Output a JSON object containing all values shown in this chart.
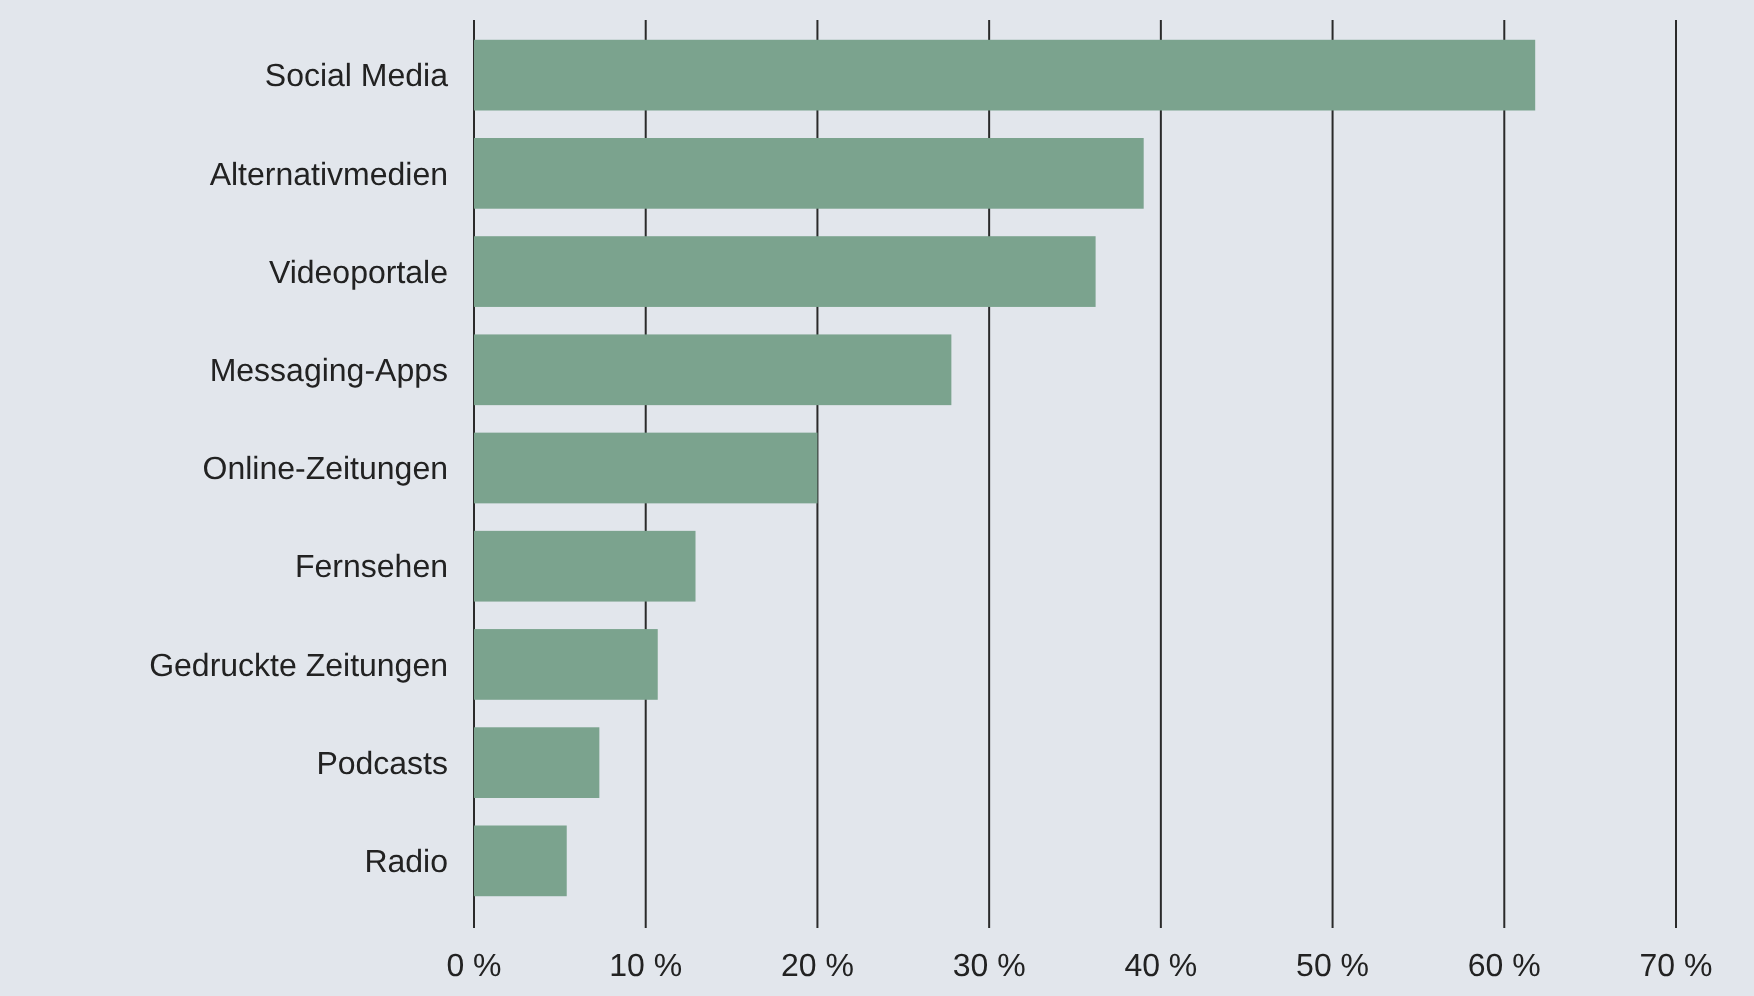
{
  "chart_data": {
    "type": "bar",
    "orientation": "horizontal",
    "categories": [
      "Social Media",
      "Alternativmedien",
      "Videoportale",
      "Messaging-Apps",
      "Online-Zeitungen",
      "Fernsehen",
      "Gedruckte Zeitungen",
      "Podcasts",
      "Radio"
    ],
    "values": [
      61.8,
      39,
      36.2,
      27.8,
      20,
      12.9,
      10.7,
      7.3,
      5.4
    ],
    "color": "#7ba38e",
    "xlim": [
      0,
      70
    ],
    "xticks": [
      {
        "value": 0,
        "label": "0 %"
      },
      {
        "value": 10,
        "label": "10 %"
      },
      {
        "value": 20,
        "label": "20 %"
      },
      {
        "value": 30,
        "label": "30 %"
      },
      {
        "value": 40,
        "label": "40 %"
      },
      {
        "value": 50,
        "label": "50 %"
      },
      {
        "value": 60,
        "label": "60 %"
      },
      {
        "value": 70,
        "label": "70 %"
      }
    ],
    "grid": "x"
  }
}
